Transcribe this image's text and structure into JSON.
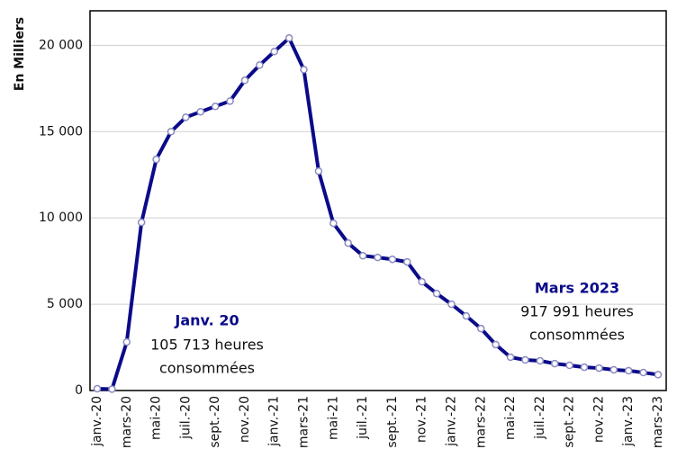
{
  "chart_data": {
    "type": "line",
    "y_label": "En Milliers",
    "categories": [
      "janv.-20",
      null,
      "mars-20",
      null,
      "mai-20",
      null,
      "juil.-20",
      null,
      "sept.-20",
      null,
      "nov.-20",
      null,
      "janv.-21",
      null,
      "mars-21",
      null,
      "mai-21",
      null,
      "juil.-21",
      null,
      "sept.-21",
      null,
      "nov.-21",
      null,
      "janv.-22",
      null,
      "mars-22",
      null,
      "mai-22",
      null,
      "juil.-22",
      null,
      "sept.-22",
      null,
      "nov.-22",
      null,
      "janv.-23",
      null,
      "mars-23"
    ],
    "series": [
      {
        "color": "#0a0a8a",
        "values": [
          105.713,
          80,
          2810,
          9740,
          13390,
          15000,
          15830,
          16150,
          16460,
          16770,
          17970,
          18850,
          19640,
          20420,
          18590,
          12710,
          9690,
          8540,
          7810,
          7710,
          7600,
          7450,
          6300,
          5620,
          5000,
          4320,
          3590,
          2660,
          1930,
          1770,
          1720,
          1560,
          1460,
          1350,
          1300,
          1200,
          1150,
          1040,
          917.991
        ]
      }
    ],
    "ylim": [
      0,
      22000
    ],
    "yticks": [
      0,
      {
        "value": 5000,
        "label": "5 000"
      },
      {
        "value": 10000,
        "label": "10 000"
      },
      {
        "value": 15000,
        "label": "15 000"
      },
      {
        "value": 20000,
        "label": "20 000"
      }
    ],
    "grid": true,
    "annotations": [
      {
        "title": "Janv. 20",
        "lines": [
          "105 713 heures",
          "consommées"
        ]
      },
      {
        "title": "Mars 2023",
        "lines": [
          "917 991 heures",
          "consommées"
        ]
      }
    ]
  }
}
